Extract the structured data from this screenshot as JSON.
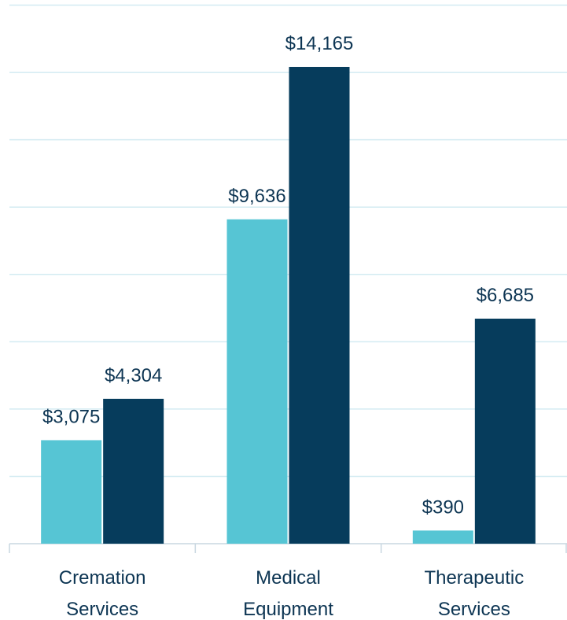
{
  "chart_data": {
    "type": "bar",
    "categories": [
      "Cremation Services",
      "Medical Equipment",
      "Therapeutic Services"
    ],
    "series": [
      {
        "color": "#56c5d4",
        "values": [
          3075,
          9636,
          390
        ],
        "value_labels": [
          "$3,075",
          "$9,636",
          "$390"
        ]
      },
      {
        "color": "#063c5c",
        "values": [
          4304,
          14165,
          6685
        ],
        "value_labels": [
          "$4,304",
          "$14,165",
          "$6,685"
        ]
      }
    ],
    "ylim": [
      0,
      16000
    ],
    "yticks": [
      0,
      2000,
      4000,
      6000,
      8000,
      10000,
      12000,
      14000,
      16000
    ],
    "grid": true
  }
}
